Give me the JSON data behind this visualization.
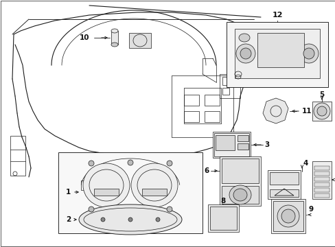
{
  "background": "#ffffff",
  "line_color": "#1a1a1a",
  "label_color": "#111111",
  "lw_main": 0.8,
  "lw_thin": 0.5,
  "lw_med": 0.65,
  "figsize": [
    4.89,
    3.6
  ],
  "dpi": 100,
  "xlim": [
    0,
    489
  ],
  "ylim": [
    0,
    360
  ],
  "components": {
    "label_fontsize": 7.5,
    "label_fontweight": "bold"
  }
}
